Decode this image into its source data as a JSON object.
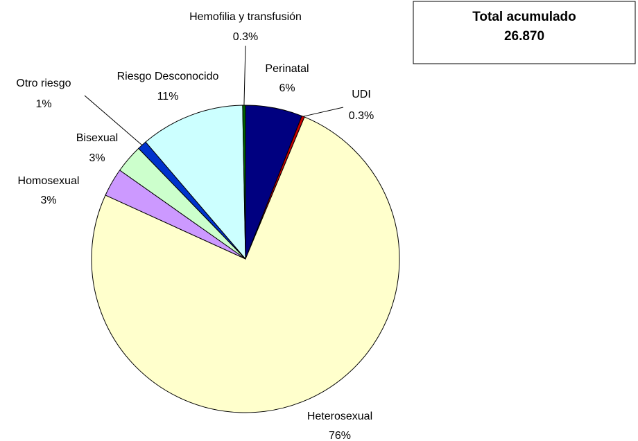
{
  "chart_data": {
    "type": "pie",
    "categories": [
      "Perinatal",
      "UDI",
      "Heterosexual",
      "Homosexual",
      "Bisexual",
      "Otro riesgo",
      "Riesgo Desconocido",
      "Hemofilia y transfusión"
    ],
    "values": [
      6,
      0.3,
      76,
      3,
      3,
      1,
      11,
      0.3
    ],
    "value_labels": [
      "6%",
      "0.3%",
      "76%",
      "3%",
      "3%",
      "1%",
      "11%",
      "0.3%"
    ],
    "colors": [
      "#000080",
      "#cc0000",
      "#ffffcc",
      "#cc99ff",
      "#ccffcc",
      "#0033cc",
      "#ccffff",
      "#006600"
    ],
    "annotations": {
      "box_title": "Total acumulado",
      "box_value": "26.870"
    }
  }
}
